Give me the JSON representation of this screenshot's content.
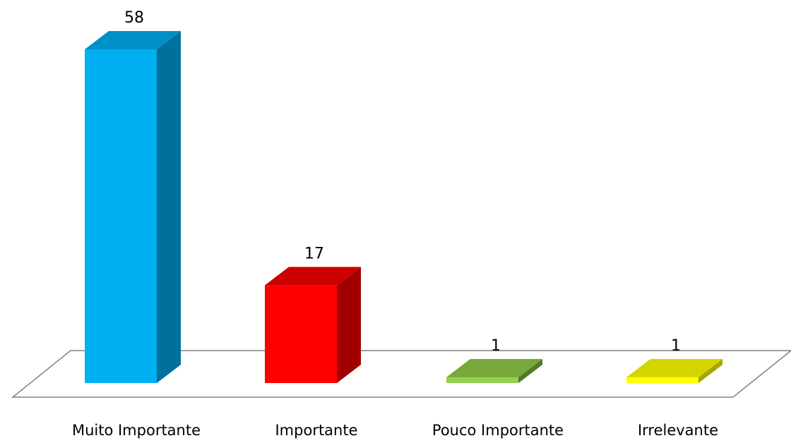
{
  "chart_data": {
    "type": "bar",
    "style": "3d",
    "categories": [
      "Muito Importante",
      "Importante",
      "Pouco Importante",
      "Irrelevante"
    ],
    "values": [
      58,
      17,
      1,
      1
    ],
    "colors": [
      {
        "front": "#00b0f0",
        "side": "#00709c",
        "top": "#0090c8"
      },
      {
        "front": "#ff0000",
        "side": "#a00000",
        "top": "#cc0000"
      },
      {
        "front": "#92d050",
        "side": "#4f7a26",
        "top": "#76a83a"
      },
      {
        "front": "#ffff00",
        "side": "#a6a600",
        "top": "#d4d400"
      }
    ],
    "floor_color": "#ffffff",
    "floor_stroke": "#808080",
    "grid": false,
    "legend": "none",
    "ylim": [
      0,
      58
    ]
  }
}
